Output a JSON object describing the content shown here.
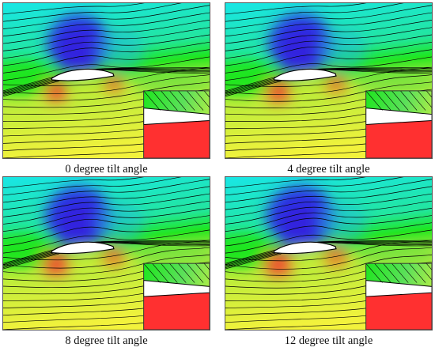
{
  "panels": [
    {
      "caption": "0 degree tilt angle",
      "tilt_deg": 0
    },
    {
      "caption": "4 degree tilt angle",
      "tilt_deg": 4
    },
    {
      "caption": "8 degree tilt angle",
      "tilt_deg": 8
    },
    {
      "caption": "12 degree tilt angle",
      "tilt_deg": 12
    }
  ],
  "colors": {
    "low_pressure": "#2a2ae6",
    "mid_cyan": "#19e6e6",
    "mid_green": "#1ee61e",
    "high_yellow": "#f2f23c",
    "high_red": "#ff3030",
    "streamline": "#000000"
  }
}
